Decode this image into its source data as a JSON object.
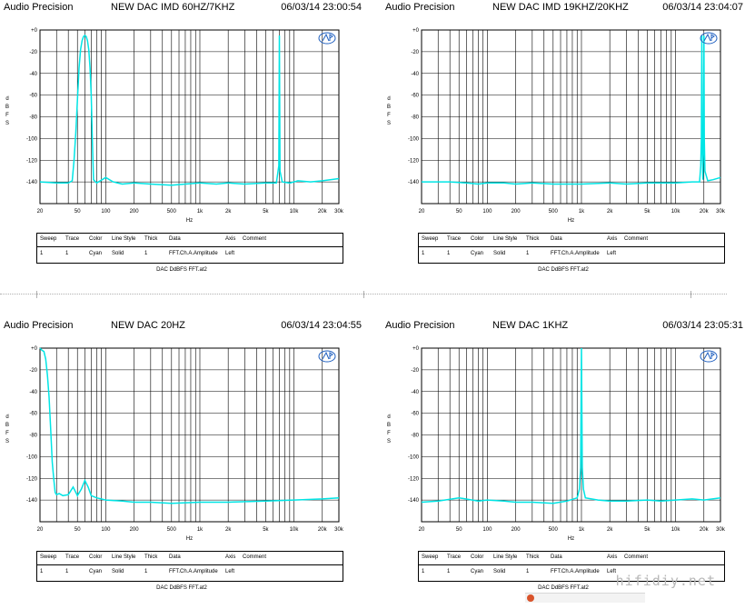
{
  "watermark": "hifidiy.net",
  "colors": {
    "trace": "#00e5e5",
    "grid": "#000000",
    "logo": "#2060c0"
  },
  "legend_headers": [
    "Sweep",
    "Trace",
    "Color",
    "Line Style",
    "Thick",
    "Data",
    "Axis",
    "Comment"
  ],
  "legend_row": [
    "1",
    "1",
    "Cyan",
    "Solid",
    "1",
    "FFT.Ch.A.Amplitude",
    "Left",
    ""
  ],
  "footer": "DAC DdBFS FFT.at2",
  "panels": [
    {
      "brand": "Audio Precision",
      "title": "NEW DAC IMD 60HZ/7KHZ",
      "stamp": "06/03/14 23:00:54"
    },
    {
      "brand": "Audio Precision",
      "title": "NEW DAC IMD 19KHZ/20KHZ",
      "stamp": "06/03/14 23:04:07"
    },
    {
      "brand": "Audio Precision",
      "title": "NEW DAC 20HZ",
      "stamp": "06/03/14 23:04:55"
    },
    {
      "brand": "Audio Precision",
      "title": "NEW DAC 1KHZ",
      "stamp": "06/03/14 23:05:31"
    }
  ],
  "chart_data": [
    {
      "type": "line",
      "title": "NEW DAC IMD 60HZ/7KHZ",
      "xlabel": "Hz",
      "ylabel": "dBFS",
      "x_scale": "log",
      "xlim": [
        20,
        30000
      ],
      "ylim": [
        -160,
        0
      ],
      "x_ticks": [
        "20",
        "50",
        "100",
        "200",
        "500",
        "1k",
        "2k",
        "5k",
        "10k",
        "20k",
        "30k"
      ],
      "y_ticks": [
        "+0",
        "-20",
        "-40",
        "-60",
        "-80",
        "-100",
        "-120",
        "-140"
      ],
      "grid": true,
      "series": [
        {
          "x": [
            20,
            30,
            40,
            44,
            46,
            48,
            50,
            52,
            54,
            56,
            58,
            60,
            62,
            64,
            66,
            68,
            70,
            72,
            74,
            80,
            100,
            120,
            150,
            200,
            300,
            500,
            700,
            1000,
            1500,
            2000,
            3000,
            5000,
            6500,
            6900,
            7000,
            7100,
            7500,
            9000,
            10000,
            11000,
            15000,
            20000,
            30000
          ],
          "y": [
            -140,
            -141,
            -141,
            -139,
            -120,
            -95,
            -65,
            -35,
            -18,
            -10,
            -6,
            -5,
            -6,
            -10,
            -18,
            -35,
            -60,
            -100,
            -138,
            -141,
            -136,
            -140,
            -142,
            -141,
            -142,
            -143,
            -142,
            -141,
            -142,
            -141,
            -142,
            -141,
            -141,
            -125,
            -5,
            -130,
            -140,
            -141,
            -140,
            -139,
            -140,
            -139,
            -137
          ]
        }
      ]
    },
    {
      "type": "line",
      "title": "NEW DAC IMD 19KHZ/20KHZ",
      "xlabel": "Hz",
      "ylabel": "dBFS",
      "x_scale": "log",
      "xlim": [
        20,
        30000
      ],
      "ylim": [
        -160,
        0
      ],
      "x_ticks": [
        "20",
        "50",
        "100",
        "200",
        "500",
        "1k",
        "2k",
        "5k",
        "10k",
        "20k",
        "30k"
      ],
      "y_ticks": [
        "+0",
        "-20",
        "-40",
        "-60",
        "-80",
        "-100",
        "-120",
        "-140"
      ],
      "grid": true,
      "series": [
        {
          "x": [
            20,
            40,
            60,
            80,
            100,
            150,
            200,
            300,
            500,
            1000,
            2000,
            3000,
            5000,
            10000,
            15000,
            18000,
            18500,
            18800,
            19000,
            19200,
            19500,
            19800,
            20000,
            20200,
            20500,
            22000,
            25000,
            30000
          ],
          "y": [
            -140,
            -140,
            -141,
            -142,
            -141,
            -141,
            -142,
            -141,
            -142,
            -142,
            -141,
            -142,
            -141,
            -141,
            -140,
            -140,
            -125,
            -100,
            -5,
            -100,
            -138,
            -100,
            -5,
            -100,
            -130,
            -139,
            -138,
            -136
          ]
        }
      ]
    },
    {
      "type": "line",
      "title": "NEW DAC 20HZ",
      "xlabel": "Hz",
      "ylabel": "dBFS",
      "x_scale": "log",
      "xlim": [
        20,
        30000
      ],
      "ylim": [
        -160,
        0
      ],
      "x_ticks": [
        "20",
        "50",
        "100",
        "200",
        "500",
        "1k",
        "2k",
        "5k",
        "10k",
        "20k",
        "30k"
      ],
      "y_ticks": [
        "+0",
        "-20",
        "-40",
        "-60",
        "-80",
        "-100",
        "-120",
        "-140"
      ],
      "grid": true,
      "series": [
        {
          "x": [
            20,
            21,
            22,
            23,
            24,
            25,
            26,
            27,
            28,
            29,
            30,
            32,
            35,
            40,
            45,
            50,
            55,
            60,
            65,
            70,
            80,
            100,
            150,
            200,
            300,
            500,
            1000,
            2000,
            5000,
            10000,
            20000,
            30000
          ],
          "y": [
            0,
            -2,
            -3,
            -10,
            -25,
            -45,
            -75,
            -105,
            -120,
            -133,
            -135,
            -134,
            -136,
            -135,
            -128,
            -136,
            -130,
            -122,
            -128,
            -136,
            -138,
            -140,
            -141,
            -142,
            -142,
            -143,
            -142,
            -142,
            -141,
            -140,
            -139,
            -138
          ]
        }
      ]
    },
    {
      "type": "line",
      "title": "NEW DAC 1KHZ",
      "xlabel": "Hz",
      "ylabel": "dBFS",
      "x_scale": "log",
      "xlim": [
        20,
        30000
      ],
      "ylim": [
        -160,
        0
      ],
      "x_ticks": [
        "20",
        "50",
        "100",
        "200",
        "500",
        "1k",
        "2k",
        "5k",
        "10k",
        "20k",
        "30k"
      ],
      "y_ticks": [
        "+0",
        "-20",
        "-40",
        "-60",
        "-80",
        "-100",
        "-120",
        "-140"
      ],
      "grid": true,
      "series": [
        {
          "x": [
            20,
            30,
            50,
            80,
            100,
            150,
            200,
            300,
            500,
            700,
            900,
            950,
            980,
            1000,
            1020,
            1050,
            1100,
            1500,
            2000,
            3000,
            5000,
            7000,
            10000,
            15000,
            20000,
            30000
          ],
          "y": [
            -142,
            -141,
            -138,
            -141,
            -140,
            -141,
            -142,
            -142,
            -143,
            -141,
            -138,
            -130,
            -110,
            0,
            -110,
            -130,
            -138,
            -140,
            -141,
            -141,
            -140,
            -141,
            -140,
            -139,
            -140,
            -138
          ]
        }
      ]
    }
  ]
}
